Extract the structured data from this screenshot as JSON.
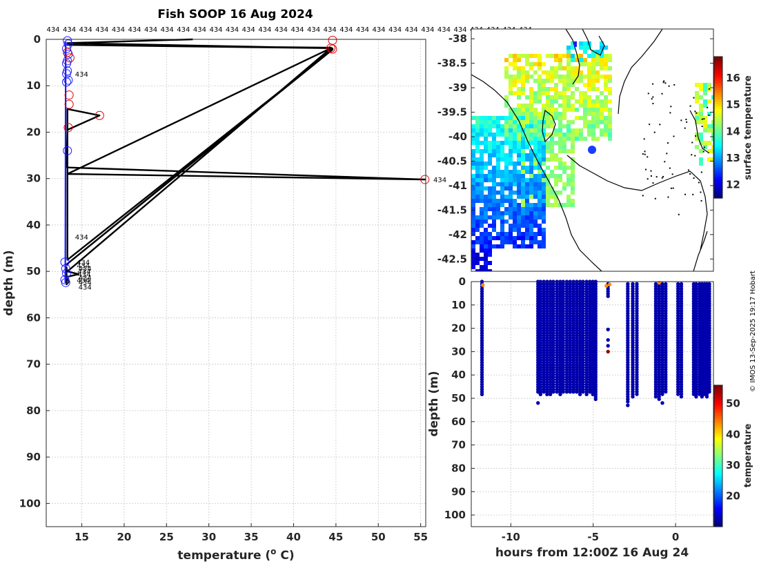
{
  "title": "Fish SOOP 16 Aug 2024",
  "credit": "© IMOS 13-Sep-2025 19:17 Hobart",
  "vessel_label": "434",
  "colors": {
    "profile_line": "#000000",
    "circle_ok": "#1a1aff",
    "circle_flag": "#e00000",
    "map_marker": "#1a3cff",
    "coast": "#000000"
  },
  "chart_data": [
    {
      "type": "line",
      "name": "temperature-profile",
      "xlabel": "temperature (o C)",
      "xlabel_main": "temperature (",
      "xlabel_sup": "o",
      "xlabel_end": " C)",
      "ylabel": "depth (m)",
      "xlim": [
        10.8,
        55.6
      ],
      "ylim": [
        0,
        105
      ],
      "xticks": [
        "15",
        "20",
        "25",
        "30",
        "35",
        "40",
        "45",
        "50",
        "55"
      ],
      "yticks": [
        "0",
        "10",
        "20",
        "30",
        "40",
        "50",
        "60",
        "70",
        "80",
        "90",
        "100"
      ],
      "profile_line": [
        [
          28.1,
          0.0
        ],
        [
          13.3,
          0.8
        ],
        [
          44.4,
          1.9
        ],
        [
          13.3,
          1.2
        ],
        [
          44.4,
          1.8
        ],
        [
          44.6,
          2.0
        ],
        [
          13.2,
          48.5
        ],
        [
          44.6,
          2.2
        ],
        [
          13.3,
          47.5
        ],
        [
          13.3,
          15.0
        ],
        [
          17.1,
          16.4
        ],
        [
          13.3,
          19.5
        ],
        [
          13.2,
          27.6
        ],
        [
          55.5,
          30.2
        ],
        [
          13.3,
          29.0
        ],
        [
          44.4,
          1.9
        ],
        [
          13.3,
          50.0
        ],
        [
          14.6,
          50.6
        ],
        [
          13.2,
          51.2
        ],
        [
          13.5,
          52.2
        ],
        [
          13.2,
          52.8
        ],
        [
          13.2,
          49.0
        ]
      ],
      "circles_flagged": [
        [
          44.6,
          0.2
        ],
        [
          44.4,
          1.9
        ],
        [
          44.6,
          2.1
        ],
        [
          17.1,
          16.4
        ],
        [
          55.5,
          30.2
        ],
        [
          13.6,
          4.0
        ],
        [
          13.5,
          12.0
        ],
        [
          13.5,
          14.0
        ],
        [
          13.4,
          19.0
        ],
        [
          13.3,
          2.8
        ]
      ],
      "circles_ok": [
        [
          13.3,
          0.3
        ],
        [
          13.4,
          1.0
        ],
        [
          13.2,
          2.0
        ],
        [
          13.4,
          3.2
        ],
        [
          13.3,
          4.6
        ],
        [
          13.2,
          5.2
        ],
        [
          13.3,
          6.8
        ],
        [
          13.2,
          7.4
        ],
        [
          13.4,
          8.8
        ],
        [
          13.2,
          9.2
        ],
        [
          13.3,
          24.0
        ],
        [
          13.0,
          48.0
        ],
        [
          13.1,
          49.4
        ],
        [
          13.2,
          50.4
        ],
        [
          13.0,
          51.8
        ],
        [
          13.1,
          52.4
        ]
      ],
      "vessel_labels": [
        [
          14.2,
          7.4
        ],
        [
          14.2,
          42.5
        ],
        [
          14.4,
          48.0
        ],
        [
          14.4,
          48.7
        ],
        [
          14.6,
          49.3
        ],
        [
          14.5,
          50.0
        ],
        [
          14.5,
          50.6
        ],
        [
          14.6,
          51.3
        ],
        [
          14.4,
          51.8
        ],
        [
          14.6,
          52.3
        ],
        [
          14.6,
          53.3
        ],
        [
          56.5,
          30.2
        ]
      ],
      "top_label_count": 30
    },
    {
      "type": "heatmap",
      "name": "surface-temperature-map",
      "ylim": [
        -42.75,
        -37.8
      ],
      "yticks": [
        "-38",
        "-38.5",
        "-39",
        "-39.5",
        "-40",
        "-40.5",
        "-41",
        "-41.5",
        "-42",
        "-42.5"
      ],
      "colorbar_label": "surface temperature",
      "colorbar_range": [
        11.5,
        16.8
      ],
      "colorbar_ticks": [
        "12",
        "13",
        "14",
        "15",
        "16"
      ],
      "marker": "blue-dot"
    },
    {
      "type": "scatter",
      "name": "depth-time-scatter",
      "xlabel": "hours from 12:00Z 16 Aug 24",
      "ylabel": "depth (m)",
      "xlim": [
        -12.4,
        2.3
      ],
      "ylim": [
        0,
        105
      ],
      "xticks": [
        "-10",
        "-5",
        "0"
      ],
      "yticks": [
        "0",
        "10",
        "20",
        "30",
        "40",
        "50",
        "60",
        "70",
        "80",
        "90",
        "100"
      ],
      "colorbar_label": "temperature",
      "colorbar_range": [
        10,
        56
      ],
      "colorbar_ticks": [
        "20",
        "30",
        "40",
        "50"
      ],
      "time_columns": [
        [
          -11.75,
          0,
          49
        ],
        [
          -8.35,
          0,
          48
        ],
        [
          -8.2,
          0,
          49
        ],
        [
          -8.0,
          0,
          48
        ],
        [
          -7.8,
          0,
          49
        ],
        [
          -7.6,
          0,
          49
        ],
        [
          -7.42,
          0,
          48
        ],
        [
          -7.2,
          0,
          48
        ],
        [
          -7.0,
          0,
          49
        ],
        [
          -6.82,
          0,
          48
        ],
        [
          -6.6,
          0,
          48
        ],
        [
          -6.4,
          0,
          48
        ],
        [
          -6.2,
          0,
          48
        ],
        [
          -6.0,
          0,
          48
        ],
        [
          -5.8,
          0,
          49
        ],
        [
          -5.62,
          0,
          48
        ],
        [
          -5.4,
          0,
          49
        ],
        [
          -5.2,
          0,
          48
        ],
        [
          -5.02,
          0,
          49
        ],
        [
          -4.85,
          0,
          51
        ],
        [
          -4.1,
          1,
          7
        ],
        [
          -2.9,
          1,
          52
        ],
        [
          -2.6,
          1,
          50
        ],
        [
          -2.35,
          1,
          49
        ],
        [
          -1.2,
          1,
          50
        ],
        [
          -1.0,
          1,
          51
        ],
        [
          -0.8,
          1,
          49
        ],
        [
          -0.6,
          1,
          48
        ],
        [
          0.15,
          1,
          49
        ],
        [
          0.35,
          1,
          50
        ],
        [
          1.1,
          1,
          49
        ],
        [
          1.25,
          1,
          50
        ],
        [
          1.45,
          1,
          49
        ],
        [
          1.6,
          1,
          50
        ],
        [
          1.75,
          1,
          49
        ],
        [
          1.9,
          1,
          50
        ],
        [
          2.05,
          1,
          48
        ]
      ],
      "extra_points": [
        [
          -4.1,
          20.5,
          12
        ],
        [
          -4.1,
          25.0,
          12
        ],
        [
          -4.1,
          27.5,
          12
        ],
        [
          -4.1,
          30.0,
          55
        ],
        [
          -8.35,
          52.0,
          12
        ],
        [
          -2.9,
          53.0,
          12
        ],
        [
          -0.8,
          52.0,
          12
        ],
        [
          -11.7,
          1.5,
          44
        ],
        [
          -4.2,
          1.8,
          44
        ],
        [
          -4.0,
          1.2,
          44
        ],
        [
          -1.0,
          0.5,
          44
        ]
      ]
    }
  ]
}
